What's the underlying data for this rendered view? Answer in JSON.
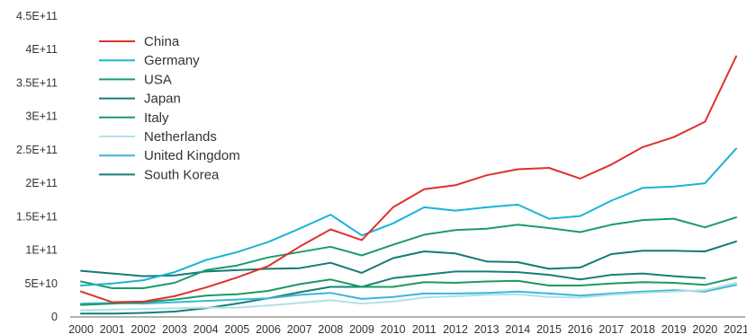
{
  "chart_data": {
    "type": "line",
    "title": "",
    "xlabel": "",
    "ylabel": "",
    "x": [
      2000,
      2001,
      2002,
      2003,
      2004,
      2005,
      2006,
      2007,
      2008,
      2009,
      2010,
      2011,
      2012,
      2013,
      2014,
      2015,
      2016,
      2017,
      2018,
      2019,
      2020,
      2021
    ],
    "x_tick_labels": [
      "2000",
      "2001",
      "2002",
      "2003",
      "2004",
      "2005",
      "2006",
      "2007",
      "2008",
      "2009",
      "2010",
      "2011",
      "2012",
      "2013",
      "2014",
      "2015",
      "2016",
      "2017",
      "2018",
      "2019",
      "2020",
      "2021"
    ],
    "ylim": [
      0,
      450000000000
    ],
    "y_ticks": [
      0,
      50000000000,
      100000000000,
      150000000000,
      200000000000,
      250000000000,
      300000000000,
      350000000000,
      400000000000,
      450000000000
    ],
    "y_tick_labels": [
      "0",
      "5E+10",
      "1E+11",
      "1.5E+11",
      "2E+11",
      "2.5E+11",
      "3E+11",
      "3.5E+11",
      "4E+11",
      "4.5E+11"
    ],
    "grid": false,
    "legend_position": "top-left",
    "series": [
      {
        "name": "China",
        "color": "#e0302e",
        "values": [
          38000000000,
          22000000000,
          23000000000,
          31000000000,
          44000000000,
          59000000000,
          76000000000,
          105000000000,
          131000000000,
          115000000000,
          164000000000,
          191000000000,
          197000000000,
          212000000000,
          221000000000,
          223000000000,
          207000000000,
          228000000000,
          254000000000,
          269000000000,
          292000000000,
          390000000000
        ]
      },
      {
        "name": "Germany",
        "color": "#1ab3d6",
        "values": [
          47000000000,
          50000000000,
          55000000000,
          67000000000,
          85000000000,
          97000000000,
          112000000000,
          132000000000,
          153000000000,
          122000000000,
          140000000000,
          164000000000,
          159000000000,
          164000000000,
          168000000000,
          147000000000,
          151000000000,
          174000000000,
          193000000000,
          195000000000,
          200000000000,
          252000000000
        ]
      },
      {
        "name": "USA",
        "color": "#1a9c6a",
        "values": [
          53000000000,
          43000000000,
          43000000000,
          51000000000,
          70000000000,
          77000000000,
          89000000000,
          97000000000,
          105000000000,
          92000000000,
          108000000000,
          123000000000,
          130000000000,
          132000000000,
          138000000000,
          133000000000,
          127000000000,
          138000000000,
          145000000000,
          147000000000,
          134000000000,
          149000000000
        ]
      },
      {
        "name": "Japan",
        "color": "#147a72",
        "values": [
          69000000000,
          65000000000,
          61000000000,
          62000000000,
          68000000000,
          70000000000,
          72000000000,
          73000000000,
          81000000000,
          66000000000,
          88000000000,
          98000000000,
          95000000000,
          83000000000,
          82000000000,
          72000000000,
          74000000000,
          94000000000,
          99000000000,
          99000000000,
          98000000000,
          113000000000
        ]
      },
      {
        "name": "Italy",
        "color": "#1b9a60",
        "values": [
          18000000000,
          20000000000,
          22000000000,
          26000000000,
          32000000000,
          34000000000,
          39000000000,
          49000000000,
          56000000000,
          45000000000,
          45000000000,
          52000000000,
          51000000000,
          53000000000,
          54000000000,
          47000000000,
          47000000000,
          50000000000,
          52000000000,
          51000000000,
          48000000000,
          59000000000
        ]
      },
      {
        "name": "Netherlands",
        "color": "#b2e1e6",
        "values": [
          10000000000,
          11000000000,
          12000000000,
          13000000000,
          14000000000,
          14000000000,
          17000000000,
          21000000000,
          25000000000,
          20000000000,
          23000000000,
          29000000000,
          31000000000,
          33000000000,
          34000000000,
          30000000000,
          29000000000,
          33000000000,
          36000000000,
          38000000000,
          40000000000,
          51000000000
        ]
      },
      {
        "name": "United Kingdom",
        "color": "#3cb6d8",
        "values": [
          20000000000,
          21000000000,
          20000000000,
          22000000000,
          24000000000,
          26000000000,
          28000000000,
          33000000000,
          36000000000,
          27000000000,
          30000000000,
          35000000000,
          35000000000,
          36000000000,
          38000000000,
          35000000000,
          32000000000,
          35000000000,
          38000000000,
          40000000000,
          38000000000,
          48000000000
        ]
      },
      {
        "name": "South Korea",
        "color": "#167f78",
        "values": [
          5000000000,
          5000000000,
          6000000000,
          8000000000,
          13000000000,
          20000000000,
          28000000000,
          37000000000,
          45000000000,
          45000000000,
          58000000000,
          63000000000,
          68000000000,
          68000000000,
          67000000000,
          63000000000,
          56000000000,
          63000000000,
          65000000000,
          61000000000,
          58000000000,
          null
        ]
      }
    ]
  }
}
